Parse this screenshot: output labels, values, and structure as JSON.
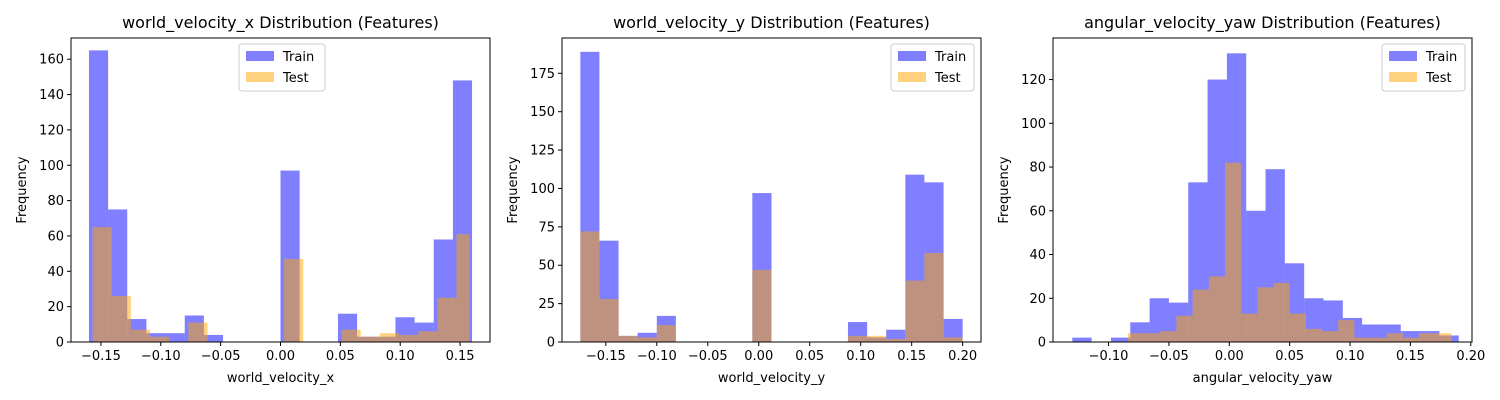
{
  "colors": {
    "train": "#0000ff",
    "test": "#ffa500",
    "bar_alpha": 0.5
  },
  "chart_data": [
    {
      "type": "bar",
      "title": "world_velocity_x Distribution (Features)",
      "xlabel": "world_velocity_x",
      "ylabel": "Frequency",
      "xlim": [
        -0.175,
        0.175
      ],
      "ylim": [
        0,
        172
      ],
      "xticks": [
        -0.15,
        -0.1,
        -0.05,
        0.0,
        0.05,
        0.1,
        0.15
      ],
      "xtick_labels": [
        "−0.15",
        "−0.10",
        "−0.05",
        "0.00",
        "0.05",
        "0.10",
        "0.15"
      ],
      "yticks": [
        0,
        20,
        40,
        60,
        80,
        100,
        120,
        140,
        160
      ],
      "ytick_labels": [
        "0",
        "20",
        "40",
        "60",
        "80",
        "100",
        "120",
        "140",
        "160"
      ],
      "legend_position": "top-center",
      "series": [
        {
          "name": "Train",
          "bins": [
            [
              -0.16,
              -0.144,
              165
            ],
            [
              -0.144,
              -0.128,
              75
            ],
            [
              -0.128,
              -0.112,
              13
            ],
            [
              -0.112,
              -0.096,
              5
            ],
            [
              -0.096,
              -0.08,
              5
            ],
            [
              -0.08,
              -0.064,
              15
            ],
            [
              -0.064,
              -0.048,
              4
            ],
            [
              -0.048,
              -0.032,
              0
            ],
            [
              -0.032,
              -0.016,
              0
            ],
            [
              -0.016,
              0.0,
              0
            ],
            [
              0.0,
              0.016,
              97
            ],
            [
              0.016,
              0.032,
              0
            ],
            [
              0.032,
              0.048,
              0
            ],
            [
              0.048,
              0.064,
              16
            ],
            [
              0.064,
              0.08,
              3
            ],
            [
              0.08,
              0.096,
              3
            ],
            [
              0.096,
              0.112,
              14
            ],
            [
              0.112,
              0.128,
              11
            ],
            [
              0.128,
              0.144,
              58
            ],
            [
              0.144,
              0.16,
              148
            ]
          ]
        },
        {
          "name": "Test",
          "bins": [
            [
              -0.157,
              -0.141,
              65
            ],
            [
              -0.141,
              -0.125,
              26
            ],
            [
              -0.125,
              -0.109,
              7
            ],
            [
              -0.109,
              -0.093,
              3
            ],
            [
              -0.093,
              -0.077,
              0
            ],
            [
              -0.077,
              -0.061,
              11
            ],
            [
              -0.061,
              -0.045,
              0
            ],
            [
              -0.045,
              -0.029,
              0
            ],
            [
              -0.029,
              -0.013,
              0
            ],
            [
              -0.013,
              0.003,
              0
            ],
            [
              0.003,
              0.019,
              47
            ],
            [
              0.019,
              0.035,
              0
            ],
            [
              0.035,
              0.051,
              0
            ],
            [
              0.051,
              0.067,
              7
            ],
            [
              0.067,
              0.083,
              3
            ],
            [
              0.083,
              0.099,
              5
            ],
            [
              0.099,
              0.115,
              4
            ],
            [
              0.115,
              0.131,
              6
            ],
            [
              0.131,
              0.147,
              25
            ],
            [
              0.147,
              0.158,
              61
            ]
          ]
        }
      ]
    },
    {
      "type": "bar",
      "title": "world_velocity_y Distribution (Features)",
      "xlabel": "world_velocity_y",
      "ylabel": "Frequency",
      "xlim": [
        -0.193,
        0.218
      ],
      "ylim": [
        0,
        198
      ],
      "xticks": [
        -0.15,
        -0.1,
        -0.05,
        0.0,
        0.05,
        0.1,
        0.15,
        0.2
      ],
      "xtick_labels": [
        "−0.15",
        "−0.10",
        "−0.05",
        "0.00",
        "0.05",
        "0.10",
        "0.15",
        "0.20"
      ],
      "yticks": [
        0,
        25,
        50,
        75,
        100,
        125,
        150,
        175
      ],
      "ytick_labels": [
        "0",
        "25",
        "50",
        "75",
        "100",
        "125",
        "150",
        "175"
      ],
      "legend_position": "upper right",
      "series": [
        {
          "name": "Train",
          "bins": [
            [
              -0.175,
              -0.1563,
              189
            ],
            [
              -0.1563,
              -0.1375,
              66
            ],
            [
              -0.1375,
              -0.1188,
              4
            ],
            [
              -0.1188,
              -0.1,
              6
            ],
            [
              -0.1,
              -0.0813,
              17
            ],
            [
              -0.0813,
              -0.0625,
              0
            ],
            [
              -0.0625,
              -0.0438,
              0
            ],
            [
              -0.0438,
              -0.025,
              0
            ],
            [
              -0.025,
              -0.0063,
              0
            ],
            [
              -0.0063,
              0.0125,
              97
            ],
            [
              0.0125,
              0.0313,
              0
            ],
            [
              0.0313,
              0.05,
              0
            ],
            [
              0.05,
              0.0688,
              0
            ],
            [
              0.0688,
              0.0875,
              0
            ],
            [
              0.0875,
              0.1063,
              13
            ],
            [
              0.1063,
              0.125,
              3
            ],
            [
              0.125,
              0.1438,
              8
            ],
            [
              0.1438,
              0.1625,
              109
            ],
            [
              0.1625,
              0.1813,
              104
            ],
            [
              0.1813,
              0.2,
              15
            ]
          ]
        },
        {
          "name": "Test",
          "bins": [
            [
              -0.175,
              -0.1563,
              72
            ],
            [
              -0.1563,
              -0.1375,
              28
            ],
            [
              -0.1375,
              -0.1188,
              4
            ],
            [
              -0.1188,
              -0.1,
              3
            ],
            [
              -0.1,
              -0.0813,
              11
            ],
            [
              -0.0813,
              -0.0625,
              0
            ],
            [
              -0.0625,
              -0.0438,
              0
            ],
            [
              -0.0438,
              -0.025,
              0
            ],
            [
              -0.025,
              -0.0063,
              0
            ],
            [
              -0.0063,
              0.0125,
              47
            ],
            [
              0.0125,
              0.0313,
              0
            ],
            [
              0.0313,
              0.05,
              0
            ],
            [
              0.05,
              0.0688,
              0
            ],
            [
              0.0688,
              0.0875,
              0
            ],
            [
              0.0875,
              0.1063,
              4
            ],
            [
              0.1063,
              0.125,
              4
            ],
            [
              0.125,
              0.1438,
              2
            ],
            [
              0.1438,
              0.1625,
              40
            ],
            [
              0.1625,
              0.1813,
              58
            ],
            [
              0.1813,
              0.2,
              3
            ]
          ]
        }
      ]
    },
    {
      "type": "bar",
      "title": "angular_velocity_yaw Distribution (Features)",
      "xlabel": "angular_velocity_yaw",
      "ylabel": "Frequency",
      "xlim": [
        -0.146,
        0.201
      ],
      "ylim": [
        0,
        139
      ],
      "xticks": [
        -0.1,
        -0.05,
        0.0,
        0.05,
        0.1,
        0.15,
        0.2
      ],
      "xtick_labels": [
        "−0.10",
        "−0.05",
        "0.00",
        "0.05",
        "0.10",
        "0.15",
        "0.20"
      ],
      "yticks": [
        0,
        20,
        40,
        60,
        80,
        100,
        120
      ],
      "ytick_labels": [
        "0",
        "20",
        "40",
        "60",
        "80",
        "100",
        "120"
      ],
      "legend_position": "upper right",
      "series": [
        {
          "name": "Train",
          "bins": [
            [
              -0.13,
              -0.114,
              2
            ],
            [
              -0.114,
              -0.098,
              0
            ],
            [
              -0.098,
              -0.082,
              2
            ],
            [
              -0.082,
              -0.066,
              9
            ],
            [
              -0.066,
              -0.05,
              20
            ],
            [
              -0.05,
              -0.034,
              18
            ],
            [
              -0.034,
              -0.018,
              73
            ],
            [
              -0.018,
              -0.002,
              120
            ],
            [
              -0.002,
              0.014,
              132
            ],
            [
              0.014,
              0.03,
              60
            ],
            [
              0.03,
              0.046,
              79
            ],
            [
              0.046,
              0.062,
              36
            ],
            [
              0.062,
              0.078,
              20
            ],
            [
              0.078,
              0.094,
              19
            ],
            [
              0.094,
              0.11,
              11
            ],
            [
              0.11,
              0.126,
              8
            ],
            [
              0.126,
              0.142,
              8
            ],
            [
              0.142,
              0.158,
              5
            ],
            [
              0.158,
              0.174,
              5
            ],
            [
              0.174,
              0.19,
              3
            ]
          ]
        },
        {
          "name": "Test",
          "bins": [
            [
              -0.084,
              -0.0706,
              4
            ],
            [
              -0.0706,
              -0.0572,
              4
            ],
            [
              -0.0572,
              -0.0438,
              5
            ],
            [
              -0.0438,
              -0.0304,
              12
            ],
            [
              -0.0304,
              -0.017,
              24
            ],
            [
              -0.017,
              -0.0036,
              30
            ],
            [
              -0.0036,
              0.0098,
              82
            ],
            [
              0.0098,
              0.0232,
              13
            ],
            [
              0.0232,
              0.0366,
              25
            ],
            [
              0.0366,
              0.05,
              27
            ],
            [
              0.05,
              0.0634,
              13
            ],
            [
              0.0634,
              0.0768,
              6
            ],
            [
              0.0768,
              0.0902,
              5
            ],
            [
              0.0902,
              0.1036,
              10
            ],
            [
              0.1036,
              0.117,
              2
            ],
            [
              0.117,
              0.1304,
              2
            ],
            [
              0.1304,
              0.1438,
              4
            ],
            [
              0.1438,
              0.1572,
              2
            ],
            [
              0.1572,
              0.1706,
              4
            ],
            [
              0.1706,
              0.184,
              4
            ]
          ]
        }
      ]
    }
  ]
}
